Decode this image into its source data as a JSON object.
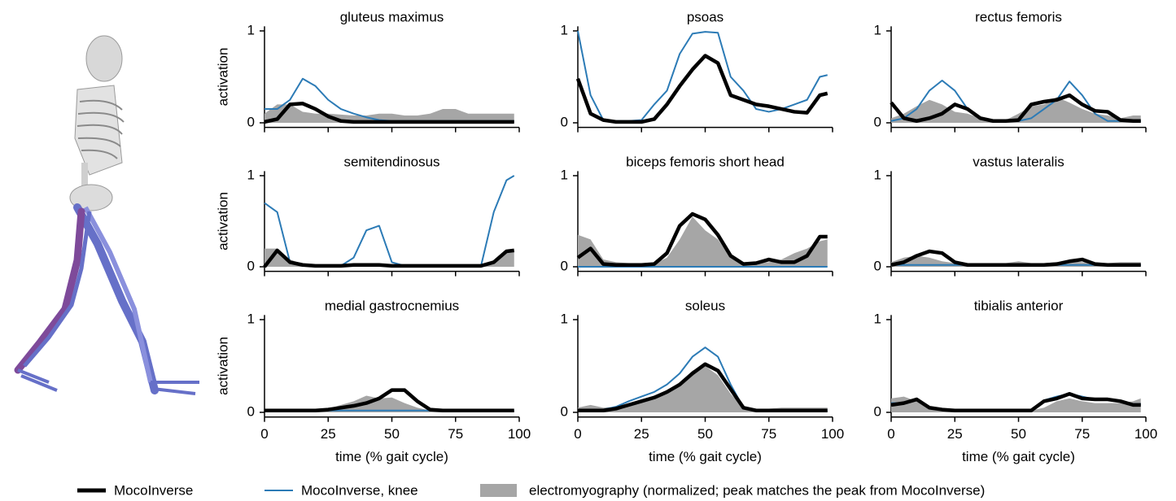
{
  "chart_data": [
    {
      "type": "line",
      "title": "gluteus maximus",
      "ylabel": "activation",
      "x": [
        0,
        5,
        10,
        15,
        20,
        25,
        30,
        35,
        40,
        45,
        50,
        55,
        60,
        65,
        70,
        75,
        80,
        85,
        90,
        95,
        98
      ],
      "xlim": [
        0,
        100
      ],
      "xticks": [
        0,
        25,
        50,
        75,
        100
      ],
      "ylim": [
        -0.05,
        1.05
      ],
      "yticks": [
        0,
        1
      ],
      "series": [
        {
          "values": [
            0.01,
            0.04,
            0.2,
            0.21,
            0.15,
            0.07,
            0.02,
            0.01,
            0.01,
            0.01,
            0.01,
            0.01,
            0.01,
            0.01,
            0.01,
            0.01,
            0.01,
            0.01,
            0.01,
            0.01,
            0.01
          ]
        },
        {
          "values": [
            0.15,
            0.15,
            0.25,
            0.48,
            0.4,
            0.25,
            0.15,
            0.1,
            0.06,
            0.03,
            0.02,
            0.02,
            0.02,
            0.02,
            0.02,
            0.02,
            0.02,
            0.02,
            0.02,
            0.02,
            0.02
          ]
        },
        {
          "values": [
            0.1,
            0.2,
            0.2,
            0.12,
            0.1,
            0.1,
            0.09,
            0.08,
            0.08,
            0.1,
            0.1,
            0.08,
            0.08,
            0.1,
            0.15,
            0.15,
            0.1,
            0.1,
            0.1,
            0.1,
            0.1
          ]
        }
      ]
    },
    {
      "type": "line",
      "title": "psoas",
      "x": [
        0,
        5,
        10,
        15,
        20,
        25,
        30,
        35,
        40,
        45,
        50,
        55,
        60,
        65,
        70,
        75,
        80,
        85,
        90,
        95,
        98
      ],
      "xlim": [
        0,
        100
      ],
      "xticks": [
        0,
        25,
        50,
        75,
        100
      ],
      "ylim": [
        -0.05,
        1.05
      ],
      "yticks": [
        0,
        1
      ],
      "series": [
        {
          "values": [
            0.48,
            0.1,
            0.03,
            0.01,
            0.01,
            0.01,
            0.04,
            0.2,
            0.4,
            0.58,
            0.73,
            0.65,
            0.3,
            0.25,
            0.2,
            0.18,
            0.15,
            0.12,
            0.11,
            0.3,
            0.32
          ]
        },
        {
          "values": [
            1.0,
            0.3,
            0.03,
            0.02,
            0.02,
            0.03,
            0.2,
            0.35,
            0.75,
            0.97,
            0.99,
            0.98,
            0.5,
            0.35,
            0.15,
            0.12,
            0.15,
            0.2,
            0.25,
            0.5,
            0.52
          ]
        },
        {
          "values": [
            null,
            null,
            null,
            null,
            null,
            null,
            null,
            null,
            null,
            null,
            null,
            null,
            null,
            null,
            null,
            null,
            null,
            null,
            null,
            null,
            null
          ]
        }
      ]
    },
    {
      "type": "line",
      "title": "rectus femoris",
      "x": [
        0,
        5,
        10,
        15,
        20,
        25,
        30,
        35,
        40,
        45,
        50,
        55,
        60,
        65,
        70,
        75,
        80,
        85,
        90,
        95,
        98
      ],
      "xlim": [
        0,
        100
      ],
      "xticks": [
        0,
        25,
        50,
        75,
        100
      ],
      "ylim": [
        -0.05,
        1.05
      ],
      "yticks": [
        0,
        1
      ],
      "series": [
        {
          "values": [
            0.22,
            0.05,
            0.02,
            0.05,
            0.1,
            0.2,
            0.15,
            0.05,
            0.02,
            0.02,
            0.03,
            0.2,
            0.23,
            0.25,
            0.3,
            0.2,
            0.13,
            0.12,
            0.03,
            0.02,
            0.02
          ]
        },
        {
          "values": [
            0.02,
            0.05,
            0.15,
            0.35,
            0.46,
            0.35,
            0.15,
            0.05,
            0.02,
            0.02,
            0.02,
            0.05,
            0.15,
            0.25,
            0.45,
            0.3,
            0.1,
            0.02,
            0.02,
            0.02,
            0.02
          ]
        },
        {
          "values": [
            0.05,
            0.1,
            0.18,
            0.25,
            0.2,
            0.12,
            0.1,
            0.05,
            0.03,
            0.03,
            0.1,
            0.18,
            0.2,
            0.28,
            0.22,
            0.15,
            0.1,
            0.08,
            0.05,
            0.08,
            0.08
          ]
        }
      ]
    },
    {
      "type": "line",
      "title": "semitendinosus",
      "ylabel": "activation",
      "x": [
        0,
        5,
        10,
        15,
        20,
        25,
        30,
        35,
        40,
        45,
        50,
        55,
        60,
        65,
        70,
        75,
        80,
        85,
        90,
        95,
        98
      ],
      "xlim": [
        0,
        100
      ],
      "xticks": [
        0,
        25,
        50,
        75,
        100
      ],
      "ylim": [
        -0.05,
        1.05
      ],
      "yticks": [
        0,
        1
      ],
      "series": [
        {
          "values": [
            0.0,
            0.18,
            0.05,
            0.02,
            0.01,
            0.01,
            0.01,
            0.02,
            0.02,
            0.02,
            0.01,
            0.01,
            0.01,
            0.01,
            0.01,
            0.01,
            0.01,
            0.01,
            0.05,
            0.17,
            0.18
          ]
        },
        {
          "values": [
            0.7,
            0.6,
            0.05,
            0.01,
            0.01,
            0.01,
            0.01,
            0.1,
            0.4,
            0.45,
            0.05,
            0.01,
            0.01,
            0.01,
            0.01,
            0.01,
            0.01,
            0.01,
            0.6,
            0.95,
            1.0
          ]
        },
        {
          "values": [
            0.2,
            0.2,
            0.08,
            0.03,
            0.02,
            0.02,
            0.02,
            0.02,
            0.02,
            0.02,
            0.02,
            0.02,
            0.02,
            0.02,
            0.02,
            0.02,
            0.02,
            0.02,
            0.05,
            0.15,
            0.18
          ]
        }
      ]
    },
    {
      "type": "line",
      "title": "biceps femoris short head",
      "x": [
        0,
        5,
        10,
        15,
        20,
        25,
        30,
        35,
        40,
        45,
        50,
        55,
        60,
        65,
        70,
        75,
        80,
        85,
        90,
        95,
        98
      ],
      "xlim": [
        0,
        100
      ],
      "xticks": [
        0,
        25,
        50,
        75,
        100
      ],
      "ylim": [
        -0.05,
        1.05
      ],
      "yticks": [
        0,
        1
      ],
      "series": [
        {
          "values": [
            0.1,
            0.2,
            0.03,
            0.02,
            0.02,
            0.02,
            0.03,
            0.15,
            0.45,
            0.58,
            0.52,
            0.35,
            0.12,
            0.03,
            0.04,
            0.08,
            0.05,
            0.05,
            0.12,
            0.33,
            0.33
          ]
        },
        {
          "values": [
            0,
            0,
            0,
            0,
            0,
            0,
            0,
            0,
            0,
            0,
            0,
            0,
            0,
            0,
            0,
            0,
            0,
            0,
            0,
            0,
            0
          ]
        },
        {
          "values": [
            0.35,
            0.3,
            0.08,
            0.05,
            0.04,
            0.02,
            0.03,
            0.1,
            0.3,
            0.55,
            0.4,
            0.3,
            0.1,
            0.05,
            0.04,
            0.05,
            0.08,
            0.15,
            0.2,
            0.28,
            0.3
          ]
        }
      ]
    },
    {
      "type": "line",
      "title": "vastus lateralis",
      "x": [
        0,
        5,
        10,
        15,
        20,
        25,
        30,
        35,
        40,
        45,
        50,
        55,
        60,
        65,
        70,
        75,
        80,
        85,
        90,
        95,
        98
      ],
      "xlim": [
        0,
        100
      ],
      "xticks": [
        0,
        25,
        50,
        75,
        100
      ],
      "ylim": [
        -0.05,
        1.05
      ],
      "yticks": [
        0,
        1
      ],
      "series": [
        {
          "values": [
            0.02,
            0.05,
            0.12,
            0.17,
            0.15,
            0.05,
            0.02,
            0.02,
            0.02,
            0.02,
            0.02,
            0.02,
            0.02,
            0.03,
            0.06,
            0.08,
            0.03,
            0.02,
            0.02,
            0.02,
            0.02
          ]
        },
        {
          "values": [
            0.02,
            0.02,
            0.02,
            0.02,
            0.02,
            0.02,
            0.02,
            0.02,
            0.02,
            0.02,
            0.02,
            0.02,
            0.02,
            0.02,
            0.02,
            0.02,
            0.02,
            0.02,
            0.02,
            0.02,
            0.02
          ]
        },
        {
          "values": [
            0.05,
            0.1,
            0.12,
            0.1,
            0.06,
            0.04,
            0.03,
            0.03,
            0.03,
            0.04,
            0.06,
            0.04,
            0.04,
            0.05,
            0.06,
            0.05,
            0.04,
            0.04,
            0.05,
            0.05,
            0.05
          ]
        }
      ]
    },
    {
      "type": "line",
      "title": "medial gastrocnemius",
      "ylabel": "activation",
      "xlabel": "time (% gait cycle)",
      "x": [
        0,
        5,
        10,
        15,
        20,
        25,
        30,
        35,
        40,
        45,
        50,
        55,
        60,
        65,
        70,
        75,
        80,
        85,
        90,
        95,
        98
      ],
      "xlim": [
        0,
        100
      ],
      "xticks": [
        0,
        25,
        50,
        75,
        100
      ],
      "ylim": [
        -0.05,
        1.05
      ],
      "yticks": [
        0,
        1
      ],
      "series": [
        {
          "values": [
            0.02,
            0.02,
            0.02,
            0.02,
            0.02,
            0.03,
            0.05,
            0.07,
            0.1,
            0.15,
            0.24,
            0.24,
            0.12,
            0.03,
            0.02,
            0.02,
            0.02,
            0.02,
            0.02,
            0.02,
            0.02
          ]
        },
        {
          "values": [
            0.02,
            0.02,
            0.02,
            0.02,
            0.02,
            0.02,
            0.02,
            0.02,
            0.02,
            0.02,
            0.02,
            0.02,
            0.02,
            0.02,
            0.02,
            0.02,
            0.02,
            0.02,
            0.02,
            0.02,
            0.02
          ]
        },
        {
          "values": [
            0.02,
            0.02,
            0.02,
            0.02,
            0.03,
            0.04,
            0.08,
            0.12,
            0.18,
            0.15,
            0.16,
            0.1,
            0.05,
            0.02,
            0.02,
            0.02,
            0.02,
            0.02,
            0.02,
            0.02,
            0.02
          ]
        }
      ]
    },
    {
      "type": "line",
      "title": "soleus",
      "xlabel": "time (% gait cycle)",
      "x": [
        0,
        5,
        10,
        15,
        20,
        25,
        30,
        35,
        40,
        45,
        50,
        55,
        60,
        65,
        70,
        75,
        80,
        85,
        90,
        95,
        98
      ],
      "xlim": [
        0,
        100
      ],
      "xticks": [
        0,
        25,
        50,
        75,
        100
      ],
      "ylim": [
        -0.05,
        1.05
      ],
      "yticks": [
        0,
        1
      ],
      "series": [
        {
          "values": [
            0.02,
            0.02,
            0.02,
            0.04,
            0.08,
            0.12,
            0.16,
            0.22,
            0.3,
            0.42,
            0.52,
            0.45,
            0.25,
            0.05,
            0.02,
            0.02,
            0.02,
            0.02,
            0.02,
            0.02,
            0.02
          ]
        },
        {
          "values": [
            0.02,
            0.02,
            0.03,
            0.06,
            0.12,
            0.17,
            0.22,
            0.3,
            0.42,
            0.6,
            0.7,
            0.6,
            0.3,
            0.05,
            0.02,
            0.02,
            0.02,
            0.02,
            0.02,
            0.02,
            0.02
          ]
        },
        {
          "values": [
            0.05,
            0.08,
            0.05,
            0.06,
            0.1,
            0.12,
            0.15,
            0.2,
            0.3,
            0.45,
            0.5,
            0.4,
            0.2,
            0.05,
            0.04,
            0.04,
            0.05,
            0.05,
            0.05,
            0.05,
            0.05
          ]
        }
      ]
    },
    {
      "type": "line",
      "title": "tibialis anterior",
      "xlabel": "time (% gait cycle)",
      "x": [
        0,
        5,
        10,
        15,
        20,
        25,
        30,
        35,
        40,
        45,
        50,
        55,
        60,
        65,
        70,
        75,
        80,
        85,
        90,
        95,
        98
      ],
      "xlim": [
        0,
        100
      ],
      "xticks": [
        0,
        25,
        50,
        75,
        100
      ],
      "ylim": [
        -0.05,
        1.05
      ],
      "yticks": [
        0,
        1
      ],
      "series": [
        {
          "values": [
            0.08,
            0.1,
            0.14,
            0.05,
            0.03,
            0.02,
            0.02,
            0.02,
            0.02,
            0.02,
            0.02,
            0.02,
            0.12,
            0.15,
            0.2,
            0.15,
            0.14,
            0.14,
            0.12,
            0.08,
            0.08
          ]
        },
        {
          "values": [
            0.1,
            0.1,
            0.15,
            0.05,
            0.03,
            0.02,
            0.02,
            0.02,
            0.02,
            0.02,
            0.02,
            0.02,
            0.13,
            0.17,
            0.2,
            0.17,
            0.14,
            0.14,
            0.12,
            0.09,
            0.09
          ]
        },
        {
          "values": [
            0.15,
            0.17,
            0.12,
            0.05,
            0.03,
            0.02,
            0.02,
            0.02,
            0.02,
            0.02,
            0.02,
            0.02,
            0.05,
            0.12,
            0.15,
            0.12,
            0.1,
            0.1,
            0.1,
            0.12,
            0.15
          ]
        }
      ]
    }
  ],
  "legend": [
    {
      "name": "MocoInverse",
      "color": "#000000"
    },
    {
      "name": "MocoInverse, knee",
      "color": "#2c7bb6"
    },
    {
      "name": "electromyography (normalized; peak matches the peak from MocoInverse)",
      "color": "#a6a6a6"
    }
  ]
}
